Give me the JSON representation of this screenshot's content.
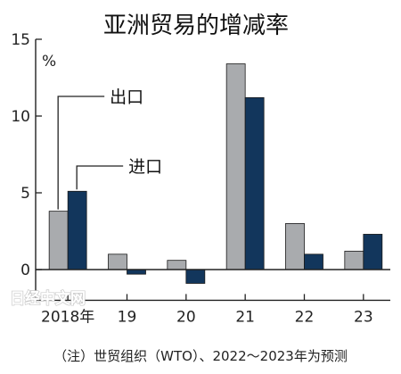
{
  "chart_data": {
    "type": "bar",
    "title": "亚洲贸易的增减率",
    "unit_label": "%",
    "categories": [
      "2018年",
      "19",
      "20",
      "21",
      "22",
      "23"
    ],
    "ylim": [
      -2,
      15
    ],
    "yticks": [
      0,
      5,
      10,
      15
    ],
    "series": [
      {
        "name": "出口",
        "color": "#a9abae",
        "values": [
          3.8,
          1.0,
          0.6,
          13.4,
          3.0,
          1.2
        ]
      },
      {
        "name": "进口",
        "color": "#12365c",
        "values": [
          5.1,
          -0.3,
          -0.9,
          11.2,
          1.0,
          2.3
        ]
      }
    ],
    "legend_placement": "callout-top-left",
    "note": "（注）世贸组织（WTO）、2022～2023年为预测"
  },
  "watermark": "日经中文网"
}
